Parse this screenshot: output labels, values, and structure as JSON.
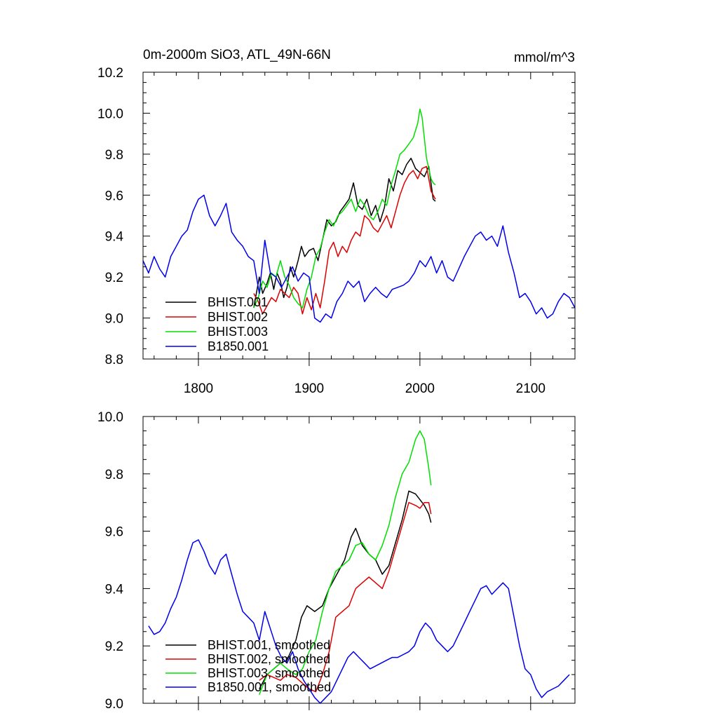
{
  "chart_data": [
    {
      "type": "line",
      "title": "0m-2000m SiO3, ATL_49N-66N",
      "units": "mmol/m^3",
      "xlim": [
        1750,
        2140
      ],
      "ylim": [
        8.8,
        10.2
      ],
      "xticks": [
        1800,
        1900,
        2000,
        2100
      ],
      "xtick_labels": [
        "1800",
        "1900",
        "2000",
        "2100"
      ],
      "yticks": [
        8.8,
        9.0,
        9.2,
        9.4,
        9.6,
        9.8,
        10.0,
        10.2
      ],
      "ytick_labels": [
        "8.8",
        "9.0",
        "9.2",
        "9.4",
        "9.6",
        "9.8",
        "10.0",
        "10.2"
      ],
      "legend_position": "lower-left",
      "series": [
        {
          "name": "BHIST.001",
          "color": "#000000",
          "x": [
            1850,
            1855,
            1858,
            1862,
            1865,
            1868,
            1871,
            1874,
            1877,
            1880,
            1883,
            1886,
            1890,
            1893,
            1896,
            1900,
            1904,
            1908,
            1912,
            1916,
            1920,
            1924,
            1928,
            1932,
            1936,
            1940,
            1944,
            1948,
            1952,
            1956,
            1960,
            1964,
            1968,
            1972,
            1976,
            1980,
            1984,
            1988,
            1992,
            1996,
            2000,
            2004,
            2008,
            2012,
            2014
          ],
          "y": [
            9.05,
            9.2,
            9.12,
            9.17,
            9.22,
            9.14,
            9.22,
            9.18,
            9.1,
            9.15,
            9.25,
            9.2,
            9.28,
            9.35,
            9.3,
            9.33,
            9.34,
            9.28,
            9.38,
            9.48,
            9.45,
            9.47,
            9.52,
            9.55,
            9.58,
            9.66,
            9.55,
            9.53,
            9.58,
            9.5,
            9.55,
            9.47,
            9.54,
            9.68,
            9.62,
            9.72,
            9.7,
            9.75,
            9.78,
            9.73,
            9.71,
            9.69,
            9.74,
            9.58,
            9.57
          ]
        },
        {
          "name": "BHIST.002",
          "color": "#dd0000",
          "x": [
            1850,
            1854,
            1858,
            1862,
            1866,
            1870,
            1874,
            1878,
            1882,
            1886,
            1890,
            1894,
            1898,
            1902,
            1906,
            1910,
            1914,
            1918,
            1922,
            1926,
            1930,
            1934,
            1938,
            1942,
            1946,
            1950,
            1954,
            1958,
            1962,
            1966,
            1970,
            1974,
            1978,
            1982,
            1986,
            1990,
            1994,
            1998,
            2002,
            2006,
            2010,
            2014
          ],
          "y": [
            9.12,
            9.08,
            9.02,
            9.06,
            9.1,
            9.08,
            9.14,
            9.12,
            9.1,
            9.15,
            9.12,
            9.02,
            9.1,
            9.04,
            9.12,
            9.05,
            9.18,
            9.33,
            9.37,
            9.3,
            9.35,
            9.32,
            9.38,
            9.42,
            9.4,
            9.5,
            9.48,
            9.44,
            9.42,
            9.46,
            9.5,
            9.44,
            9.52,
            9.6,
            9.66,
            9.7,
            9.72,
            9.68,
            9.73,
            9.74,
            9.62,
            9.58
          ]
        },
        {
          "name": "BHIST.003",
          "color": "#00e000",
          "x": [
            1850,
            1854,
            1858,
            1862,
            1866,
            1870,
            1874,
            1878,
            1882,
            1886,
            1890,
            1894,
            1898,
            1902,
            1906,
            1910,
            1914,
            1918,
            1922,
            1926,
            1930,
            1934,
            1938,
            1942,
            1946,
            1950,
            1954,
            1958,
            1962,
            1966,
            1970,
            1974,
            1978,
            1982,
            1986,
            1990,
            1994,
            1998,
            2000,
            2002,
            2006,
            2010,
            2012,
            2014
          ],
          "y": [
            9.05,
            9.1,
            9.18,
            9.15,
            9.22,
            9.2,
            9.28,
            9.2,
            9.16,
            9.1,
            9.07,
            9.05,
            9.14,
            9.2,
            9.3,
            9.34,
            9.42,
            9.48,
            9.45,
            9.5,
            9.52,
            9.55,
            9.58,
            9.52,
            9.58,
            9.55,
            9.5,
            9.48,
            9.52,
            9.58,
            9.55,
            9.65,
            9.72,
            9.8,
            9.82,
            9.85,
            9.88,
            9.95,
            10.02,
            9.98,
            9.78,
            9.68,
            9.66,
            9.65
          ]
        },
        {
          "name": "B1850.001",
          "color": "#0000ee",
          "x": [
            1750,
            1755,
            1760,
            1765,
            1770,
            1775,
            1780,
            1785,
            1790,
            1795,
            1800,
            1805,
            1810,
            1815,
            1820,
            1825,
            1830,
            1835,
            1840,
            1845,
            1850,
            1855,
            1860,
            1865,
            1870,
            1875,
            1880,
            1885,
            1890,
            1895,
            1900,
            1905,
            1910,
            1915,
            1920,
            1925,
            1930,
            1935,
            1940,
            1945,
            1950,
            1955,
            1960,
            1965,
            1970,
            1975,
            1980,
            1985,
            1990,
            1995,
            2000,
            2005,
            2010,
            2015,
            2020,
            2025,
            2030,
            2035,
            2040,
            2045,
            2050,
            2055,
            2060,
            2065,
            2070,
            2075,
            2080,
            2085,
            2090,
            2095,
            2100,
            2105,
            2110,
            2115,
            2120,
            2125,
            2130,
            2135,
            2140
          ],
          "y": [
            9.28,
            9.22,
            9.3,
            9.24,
            9.2,
            9.3,
            9.35,
            9.4,
            9.43,
            9.52,
            9.58,
            9.6,
            9.5,
            9.45,
            9.5,
            9.56,
            9.42,
            9.38,
            9.35,
            9.3,
            9.28,
            9.12,
            9.38,
            9.22,
            9.2,
            9.15,
            9.2,
            9.25,
            9.18,
            9.22,
            9.2,
            9.0,
            8.98,
            9.02,
            9.0,
            9.08,
            9.12,
            9.18,
            9.15,
            9.18,
            9.08,
            9.12,
            9.15,
            9.12,
            9.1,
            9.14,
            9.15,
            9.16,
            9.18,
            9.22,
            9.28,
            9.25,
            9.3,
            9.22,
            9.28,
            9.2,
            9.18,
            9.24,
            9.3,
            9.35,
            9.4,
            9.42,
            9.38,
            9.4,
            9.35,
            9.45,
            9.32,
            9.22,
            9.1,
            9.12,
            9.08,
            9.02,
            9.05,
            9.0,
            9.02,
            9.08,
            9.12,
            9.1,
            9.05
          ]
        }
      ]
    },
    {
      "type": "line",
      "title": "",
      "units": "",
      "xlim": [
        1750,
        2140
      ],
      "ylim": [
        9.0,
        10.0
      ],
      "xticks": [
        1800,
        1900,
        2000,
        2100
      ],
      "xtick_labels": [],
      "yticks": [
        9.0,
        9.2,
        9.4,
        9.6,
        9.8,
        10.0
      ],
      "ytick_labels": [
        "9.0",
        "9.2",
        "9.4",
        "9.6",
        "9.8",
        "10.0"
      ],
      "legend_position": "lower-left",
      "series": [
        {
          "name": "BHIST.001, smoothed",
          "color": "#000000",
          "x": [
            1855,
            1862,
            1868,
            1874,
            1880,
            1888,
            1893,
            1898,
            1905,
            1912,
            1918,
            1925,
            1932,
            1938,
            1942,
            1948,
            1954,
            1960,
            1966,
            1972,
            1978,
            1984,
            1990,
            1996,
            2000,
            2004,
            2008,
            2010
          ],
          "y": [
            9.05,
            9.1,
            9.12,
            9.14,
            9.15,
            9.22,
            9.3,
            9.34,
            9.32,
            9.34,
            9.4,
            9.45,
            9.5,
            9.58,
            9.61,
            9.55,
            9.52,
            9.5,
            9.45,
            9.48,
            9.56,
            9.64,
            9.74,
            9.73,
            9.71,
            9.69,
            9.66,
            9.63
          ]
        },
        {
          "name": "BHIST.002, smoothed",
          "color": "#dd0000",
          "x": [
            1855,
            1862,
            1868,
            1874,
            1880,
            1888,
            1894,
            1900,
            1906,
            1912,
            1918,
            1924,
            1930,
            1936,
            1942,
            1948,
            1954,
            1960,
            1966,
            1972,
            1978,
            1984,
            1990,
            1996,
            2000,
            2004,
            2008,
            2010
          ],
          "y": [
            9.08,
            9.1,
            9.09,
            9.08,
            9.1,
            9.09,
            9.07,
            9.05,
            9.04,
            9.1,
            9.18,
            9.3,
            9.32,
            9.34,
            9.4,
            9.42,
            9.44,
            9.42,
            9.4,
            9.46,
            9.54,
            9.62,
            9.7,
            9.69,
            9.68,
            9.7,
            9.7,
            9.66
          ]
        },
        {
          "name": "BHIST.003, smoothed",
          "color": "#00e000",
          "x": [
            1855,
            1862,
            1868,
            1874,
            1880,
            1888,
            1894,
            1900,
            1906,
            1912,
            1918,
            1924,
            1930,
            1936,
            1942,
            1948,
            1954,
            1960,
            1966,
            1972,
            1978,
            1984,
            1990,
            1996,
            2000,
            2004,
            2008,
            2010
          ],
          "y": [
            9.03,
            9.1,
            9.12,
            9.14,
            9.12,
            9.1,
            9.12,
            9.18,
            9.22,
            9.32,
            9.4,
            9.46,
            9.48,
            9.5,
            9.55,
            9.56,
            9.52,
            9.5,
            9.55,
            9.62,
            9.72,
            9.8,
            9.84,
            9.92,
            9.95,
            9.92,
            9.82,
            9.76
          ]
        },
        {
          "name": "B1850.001, smoothed",
          "color": "#0000ee",
          "x": [
            1755,
            1760,
            1765,
            1770,
            1775,
            1780,
            1785,
            1790,
            1795,
            1800,
            1805,
            1810,
            1815,
            1820,
            1825,
            1830,
            1835,
            1840,
            1845,
            1850,
            1855,
            1860,
            1865,
            1870,
            1875,
            1880,
            1885,
            1890,
            1895,
            1900,
            1905,
            1910,
            1915,
            1920,
            1925,
            1930,
            1935,
            1940,
            1945,
            1950,
            1955,
            1960,
            1965,
            1970,
            1975,
            1980,
            1985,
            1990,
            1995,
            2000,
            2005,
            2010,
            2015,
            2020,
            2025,
            2030,
            2035,
            2040,
            2045,
            2050,
            2055,
            2060,
            2065,
            2070,
            2075,
            2080,
            2085,
            2090,
            2095,
            2100,
            2105,
            2110,
            2115,
            2120,
            2125,
            2130,
            2135
          ],
          "y": [
            9.27,
            9.24,
            9.25,
            9.28,
            9.33,
            9.37,
            9.43,
            9.5,
            9.56,
            9.57,
            9.53,
            9.48,
            9.45,
            9.5,
            9.52,
            9.45,
            9.38,
            9.32,
            9.3,
            9.28,
            9.22,
            9.32,
            9.26,
            9.2,
            9.16,
            9.14,
            9.18,
            9.12,
            9.08,
            9.05,
            9.02,
            9.0,
            9.02,
            9.04,
            9.08,
            9.12,
            9.16,
            9.18,
            9.16,
            9.14,
            9.12,
            9.13,
            9.14,
            9.15,
            9.16,
            9.16,
            9.17,
            9.18,
            9.2,
            9.25,
            9.28,
            9.26,
            9.22,
            9.2,
            9.18,
            9.2,
            9.24,
            9.28,
            9.32,
            9.36,
            9.4,
            9.41,
            9.38,
            9.4,
            9.42,
            9.4,
            9.3,
            9.2,
            9.12,
            9.1,
            9.05,
            9.02,
            9.04,
            9.05,
            9.06,
            9.08,
            9.1
          ]
        }
      ]
    }
  ]
}
